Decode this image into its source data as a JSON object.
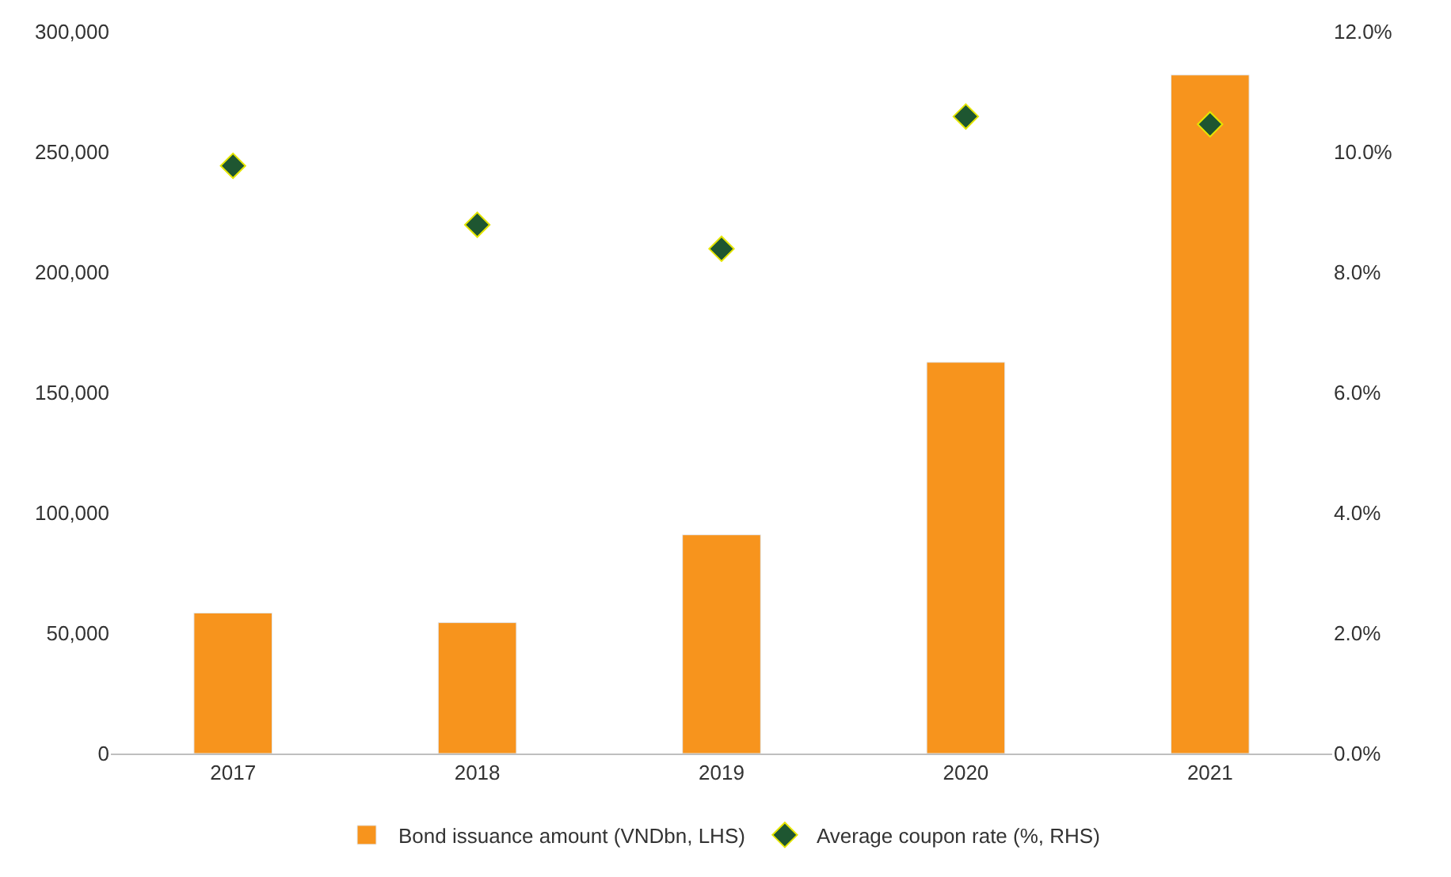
{
  "chart_data": {
    "type": "bar",
    "categories": [
      "2017",
      "2018",
      "2019",
      "2020",
      "2021"
    ],
    "series": [
      {
        "name": "Bond issuance amount (VNDbn, LHS)",
        "color": "#f7941d",
        "values": [
          58400,
          54400,
          90900,
          162600,
          282000
        ]
      },
      {
        "name": "Average coupon rate (%, RHS)",
        "color": "#1e5631",
        "type": "scatter",
        "axis": "y2",
        "marker": "diamond",
        "values": [
          9.77,
          8.79,
          8.39,
          10.59,
          10.46
        ]
      }
    ],
    "ylim": [
      0,
      300000
    ],
    "yticks": [
      {
        "value": 0,
        "label": "0"
      },
      {
        "value": 50000,
        "label": "50,000"
      },
      {
        "value": 100000,
        "label": "100,000"
      },
      {
        "value": 150000,
        "label": "150,000"
      },
      {
        "value": 200000,
        "label": "200,000"
      },
      {
        "value": 250000,
        "label": "250,000"
      },
      {
        "value": 300000,
        "label": "300,000"
      }
    ],
    "y2lim": [
      0,
      12
    ],
    "y2ticks": [
      {
        "value": 0,
        "label": "0.0%"
      },
      {
        "value": 2,
        "label": "2.0%"
      },
      {
        "value": 4,
        "label": "4.0%"
      },
      {
        "value": 6,
        "label": "6.0%"
      },
      {
        "value": 8,
        "label": "8.0%"
      },
      {
        "value": 10,
        "label": "10.0%"
      },
      {
        "value": 12,
        "label": "12.0%"
      }
    ],
    "legend": "bottom"
  }
}
